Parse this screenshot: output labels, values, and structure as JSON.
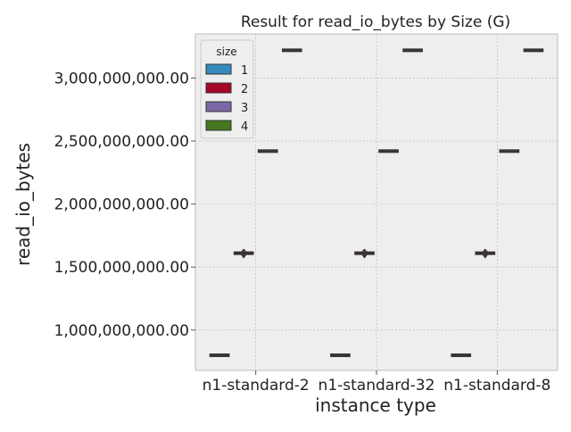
{
  "chart_data": {
    "type": "box",
    "title": "Result for read_io_bytes by Size (G)",
    "xlabel": "instance type",
    "ylabel": "read_io_bytes",
    "categories": [
      "n1-standard-2",
      "n1-standard-32",
      "n1-standard-8"
    ],
    "ylim": [
      680000000,
      3350000000
    ],
    "yticks": [
      1000000000,
      1500000000,
      2000000000,
      2500000000,
      3000000000
    ],
    "ytick_labels": [
      "1,000,000,000.00",
      "1,500,000,000.00",
      "2,000,000,000.00",
      "2,500,000,000.00",
      "3,000,000,000.00"
    ],
    "grid": true,
    "legend": {
      "title": "size",
      "position": "top-left"
    },
    "series": [
      {
        "name": "1",
        "color": "#348abd",
        "values": [
          800000000,
          800000000,
          800000000
        ]
      },
      {
        "name": "2",
        "color": "#a60628",
        "values": [
          1610000000,
          1610000000,
          1610000000
        ]
      },
      {
        "name": "3",
        "color": "#7a68a6",
        "values": [
          2420000000,
          2420000000,
          2420000000
        ]
      },
      {
        "name": "4",
        "color": "#467821",
        "values": [
          3220000000,
          3220000000,
          3220000000
        ]
      }
    ]
  }
}
